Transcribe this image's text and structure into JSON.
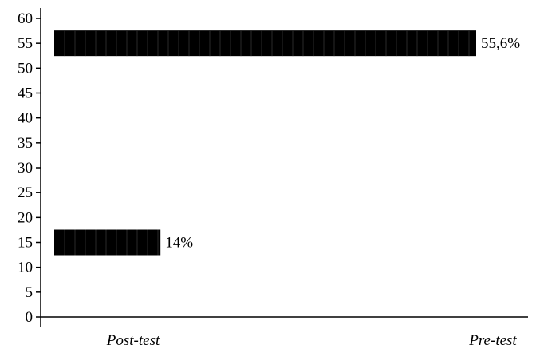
{
  "chart_data": {
    "type": "bar",
    "orientation": "horizontal",
    "title": "",
    "xlabel": "",
    "ylabel": "",
    "categories": [
      "Post-test",
      "Pre-test"
    ],
    "bars": [
      {
        "y": 15,
        "value": 14,
        "label": "14%"
      },
      {
        "y": 55,
        "value": 55.6,
        "label": "55,6%"
      }
    ],
    "xlim": [
      0,
      55.6
    ],
    "ylim": [
      0,
      60
    ],
    "yticks": [
      0,
      5,
      10,
      15,
      20,
      25,
      30,
      35,
      40,
      45,
      50,
      55,
      60
    ],
    "grid": false,
    "legend": "none",
    "bar_color": "#000000"
  }
}
